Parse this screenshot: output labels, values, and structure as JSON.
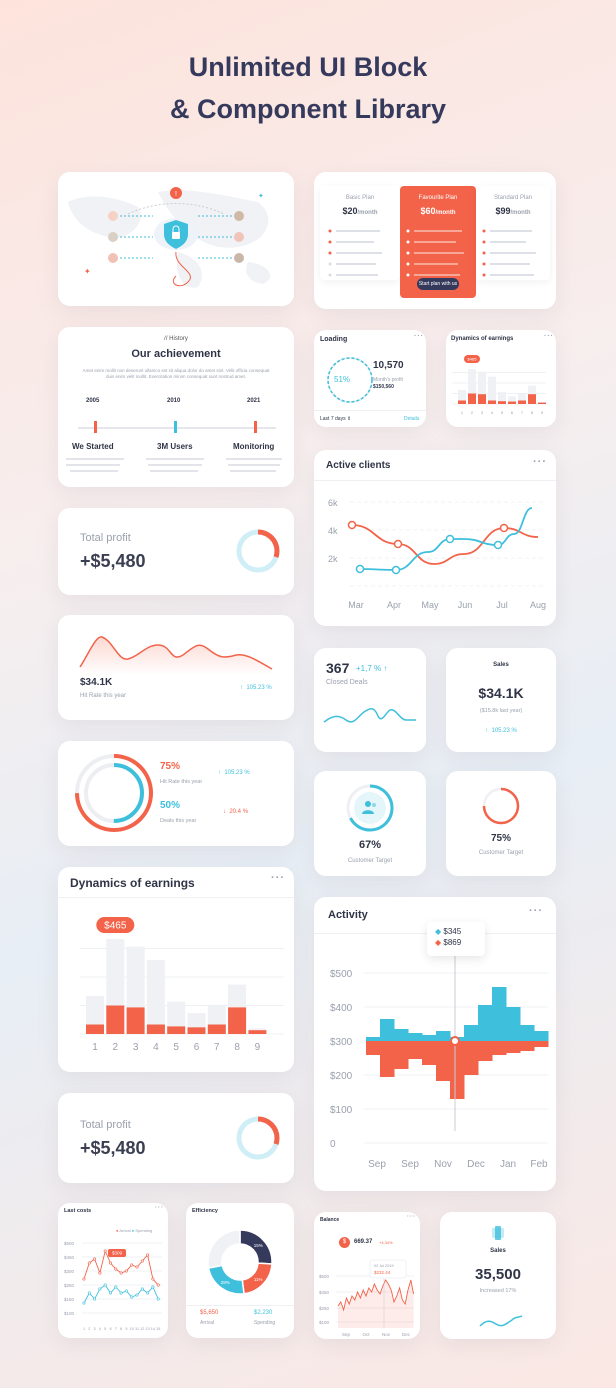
{
  "page": {
    "title_line1": "Unlimited UI Block",
    "title_line2": "& Component Library"
  },
  "colors": {
    "accent": "#f2634a",
    "secondary": "#3ebfdc",
    "navy": "#2f3447"
  },
  "map_card": {
    "icons": [
      "shield-lock-icon",
      "avatar"
    ]
  },
  "pricing": {
    "plans": [
      {
        "name": "Basic Plan",
        "price": "$20",
        "unit": "/month"
      },
      {
        "name": "Favourite Plan",
        "price": "$60",
        "unit": "/month",
        "cta": "Start plan with us"
      },
      {
        "name": "Standard Plan",
        "price": "$99",
        "unit": "/month"
      }
    ]
  },
  "achievement": {
    "tag": "// History",
    "title": "Our achievement",
    "intro": "Amet enim mollit non deserunt ullamco est sit aliqua dolor do amet sint. Velit officia consequat duis enim velit mollit. Exercitation minim consequat sunt nostrud amet.",
    "years": [
      "2005",
      "2010",
      "2021"
    ],
    "milestones": [
      {
        "title": "We Started"
      },
      {
        "title": "3M Users"
      },
      {
        "title": "Monitoring"
      }
    ]
  },
  "loading": {
    "title": "Loading",
    "percent": "51%",
    "value": "10,570",
    "sub_label": "Month's profit",
    "sub_value": "$150,560",
    "period": "Last 7 days",
    "link": "Details"
  },
  "dyn_small": {
    "title": "Dynamics of earnings",
    "badge": "$465",
    "x": [
      "1",
      "2",
      "3",
      "4",
      "5",
      "6",
      "7",
      "8",
      "9"
    ]
  },
  "active_clients": {
    "title": "Active clients",
    "y": [
      "6k",
      "4k",
      "2k"
    ],
    "x": [
      "Mar",
      "Apr",
      "May",
      "Jun",
      "Jul",
      "Aug"
    ]
  },
  "total_profit": {
    "label": "Total profit",
    "value": "+$5,480"
  },
  "hit_rate": {
    "value": "$34.1K",
    "label": "Hit Rate this year",
    "change": "105.23 %"
  },
  "rings": {
    "stat1": {
      "value": "75%",
      "label": "Hit Rate this year",
      "change": "105.23 %"
    },
    "stat2": {
      "value": "50%",
      "label": "Deals this year",
      "change": "20.4 %"
    }
  },
  "closed": {
    "value": "367",
    "change": "+1,7 %",
    "label": "Closed Deals"
  },
  "sales_small": {
    "title": "Sales",
    "value": "$34.1K",
    "sub": "($15.8k last year)",
    "change": "105.23 %"
  },
  "target1": {
    "value": "67%",
    "label": "Customer Target"
  },
  "target2": {
    "value": "75%",
    "label": "Customer Target"
  },
  "dyn_big": {
    "title": "Dynamics of earnings",
    "badge": "$465",
    "x": [
      "1",
      "2",
      "3",
      "4",
      "5",
      "6",
      "7",
      "8",
      "9"
    ]
  },
  "activity": {
    "title": "Activity",
    "legend": [
      {
        "value": "$345"
      },
      {
        "value": "$869"
      }
    ],
    "y": [
      "$500",
      "$400",
      "$300",
      "$200",
      "$100",
      "0"
    ],
    "x": [
      "Sep",
      "Sep",
      "Nov",
      "Dec",
      "Jan",
      "Feb"
    ]
  },
  "total_profit2": {
    "label": "Total profit",
    "value": "+$5,480"
  },
  "last_costs": {
    "title": "Last costs",
    "legend": [
      "Arrival",
      "Spending"
    ],
    "badge": "$309",
    "y": [
      "$600",
      "$450",
      "$300",
      "$250",
      "$150",
      "$100"
    ],
    "x": [
      "1",
      "2",
      "3",
      "4",
      "5",
      "6",
      "7",
      "8",
      "9",
      "10",
      "11",
      "12",
      "13",
      "14",
      "15"
    ]
  },
  "efficiency": {
    "title": "Efficiency",
    "slices": [
      "15%",
      "11%",
      "28%"
    ],
    "arrival_value": "$5,650",
    "arrival_label": "Arrival",
    "spending_value": "$2,230",
    "spending_label": "Spending"
  },
  "balance": {
    "title": "Balance",
    "value": "669.37",
    "change": "+4,34%",
    "tip_date": "02 Jul 2019",
    "tip_value": "$232.44",
    "y": [
      "$500",
      "$450",
      "$250",
      "$100"
    ],
    "x": [
      "Sep",
      "Oct",
      "Nov",
      "Dec"
    ]
  },
  "sales_big": {
    "title": "Sales",
    "value": "35,500",
    "sub": "Increased 17%"
  }
}
